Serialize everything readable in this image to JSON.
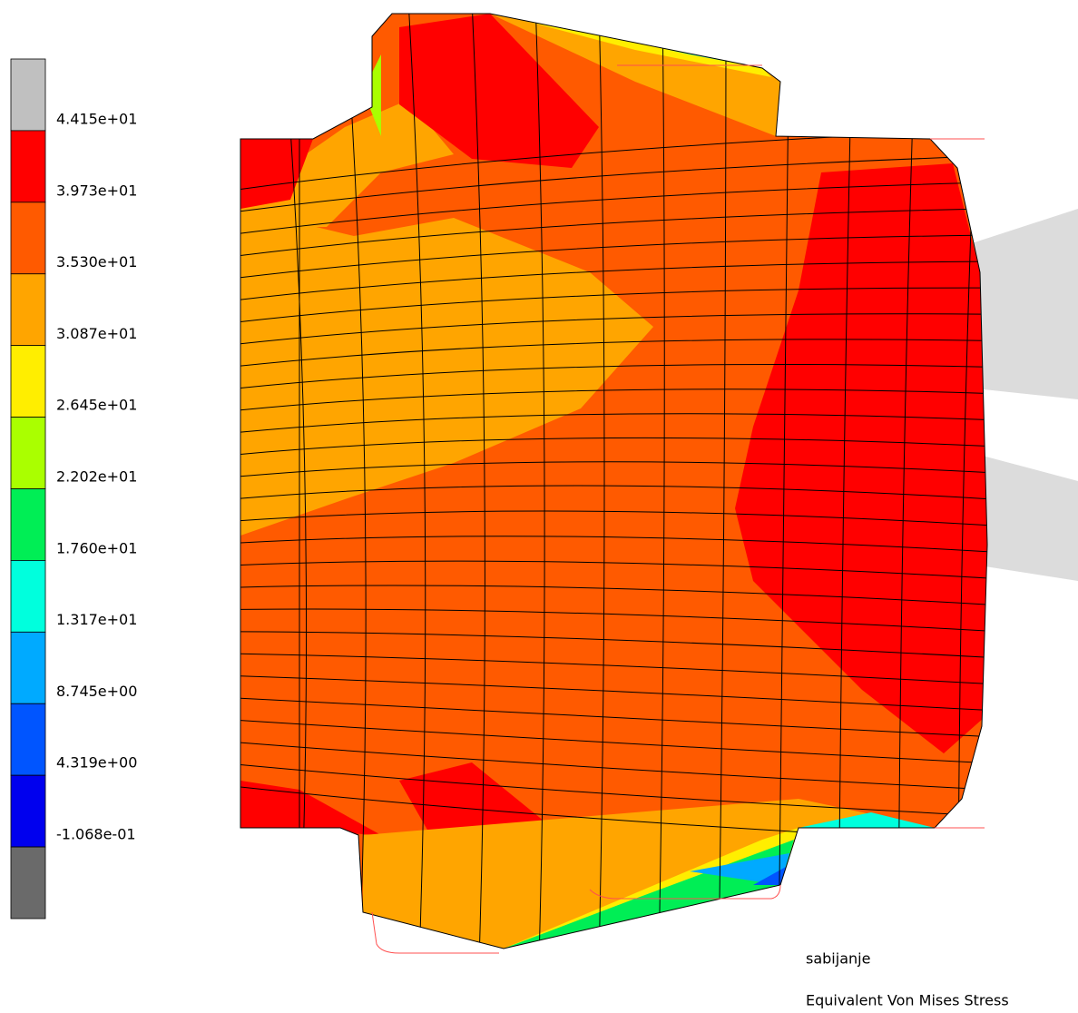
{
  "legend": {
    "colors": [
      "#c0c0c0",
      "#ff0000",
      "#ff5a00",
      "#ffa500",
      "#ffee00",
      "#aaff00",
      "#00ee55",
      "#00ffdd",
      "#00aaff",
      "#0055ff",
      "#0000ee",
      "#6a6a6a"
    ],
    "labels": [
      "4.415e+01",
      "3.973e+01",
      "3.530e+01",
      "3.087e+01",
      "2.645e+01",
      "2.202e+01",
      "1.760e+01",
      "1.317e+01",
      "8.745e+00",
      "4.319e+00",
      "-1.068e-01"
    ]
  },
  "annotations": {
    "case": "sabijanje",
    "result": "Equivalent Von Mises Stress"
  }
}
